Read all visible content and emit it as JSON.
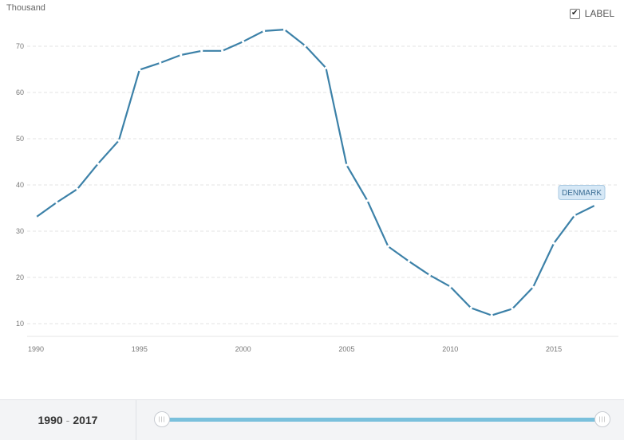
{
  "chart": {
    "unit_label": "Thousand",
    "label_toggle": {
      "checked": true,
      "text": "LABEL"
    }
  },
  "chart_data": {
    "type": "line",
    "title": "",
    "xlabel": "",
    "ylabel": "Thousand",
    "x_ticks": [
      1990,
      1995,
      2000,
      2005,
      2010,
      2015
    ],
    "y_ticks": [
      10,
      20,
      30,
      40,
      50,
      60,
      70
    ],
    "xlim": [
      1990,
      2017
    ],
    "ylim": [
      7,
      75
    ],
    "grid": true,
    "series": [
      {
        "name": "DENMARK",
        "color": "#3c81a8",
        "x": [
          1990,
          1991,
          1992,
          1993,
          1994,
          1995,
          1996,
          1997,
          1998,
          1999,
          2000,
          2001,
          2002,
          2003,
          2004,
          2005,
          2006,
          2007,
          2008,
          2009,
          2010,
          2011,
          2012,
          2013,
          2014,
          2015,
          2016,
          2017
        ],
        "values": [
          33.0,
          36.2,
          39.1,
          44.6,
          49.6,
          64.9,
          66.4,
          68.1,
          69.0,
          69.0,
          71.0,
          73.3,
          73.6,
          70.1,
          65.3,
          44.3,
          36.6,
          26.7,
          23.5,
          20.5,
          18.0,
          13.4,
          11.8,
          13.2,
          17.9,
          27.4,
          33.4,
          35.6
        ]
      }
    ]
  },
  "footer": {
    "range_start": "1990",
    "range_sep": "-",
    "range_end": "2017",
    "handle_grip": "|||"
  }
}
